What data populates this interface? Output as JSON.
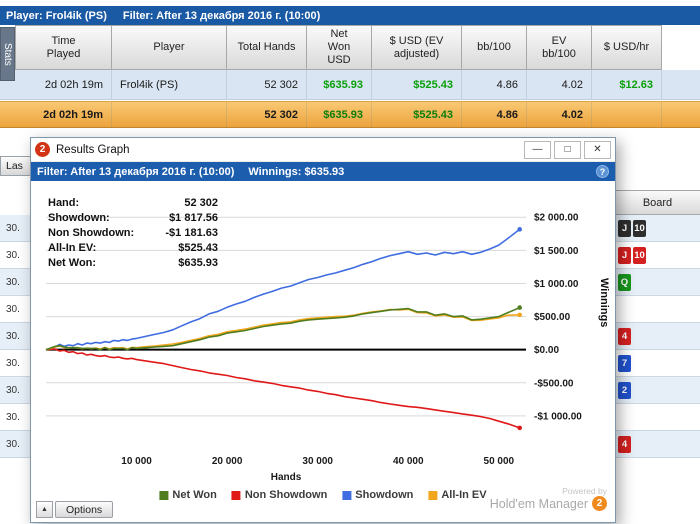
{
  "top_bar": {
    "player": "Player: Frol4ik (PS)",
    "filter": "Filter: After 13 декабря 2016 г. (10:00)"
  },
  "stats_tab": "Stats",
  "table": {
    "columns": [
      "Time Played",
      "Player",
      "Total Hands",
      "Net Won USD",
      "$ USD (EV adjusted)",
      "bb/100",
      "EV bb/100",
      "$ USD/hr"
    ],
    "rows": [
      {
        "time_played": "2d 02h 19m",
        "player": "Frol4ik (PS)",
        "total_hands": "52 302",
        "net_won": "$635.93",
        "usd_ev": "$525.43",
        "bb100": "4.86",
        "ev_bb100": "4.02",
        "usd_hr": "$12.63"
      },
      {
        "time_played": "2d 02h 19m",
        "player": "",
        "total_hands": "52 302",
        "net_won": "$635.93",
        "usd_ev": "$525.43",
        "bb100": "4.86",
        "ev_bb100": "4.02",
        "usd_hr": ""
      }
    ]
  },
  "background": {
    "last_button": "Las",
    "board_header": "Board",
    "left_rows": [
      "30.",
      "30.",
      "30.",
      "30.",
      "30.",
      "30.",
      "30.",
      "30.",
      "30."
    ],
    "card_colors": {
      "black": "#2e2e2e",
      "red": "#d42020",
      "green": "#17961c",
      "blue": "#2051cc"
    },
    "board_rows": [
      {
        "cards": [
          {
            "v": "J",
            "suit": "black"
          },
          {
            "v": "10",
            "suit": "black"
          }
        ]
      },
      {
        "cards": [
          {
            "v": "J",
            "suit": "red"
          },
          {
            "v": "10",
            "suit": "red"
          }
        ]
      },
      {
        "cards": [
          {
            "v": "Q",
            "suit": "green"
          }
        ]
      },
      {
        "cards": []
      },
      {
        "cards": [
          {
            "v": "4",
            "suit": "red"
          }
        ]
      },
      {
        "cards": [
          {
            "v": "7",
            "suit": "blue"
          }
        ]
      },
      {
        "cards": [
          {
            "v": "2",
            "suit": "blue"
          }
        ]
      },
      {
        "cards": []
      },
      {
        "cards": [
          {
            "v": "4",
            "suit": "red"
          }
        ]
      }
    ]
  },
  "graph_window": {
    "title": "Results Graph",
    "icon_label": "2",
    "controls": {
      "minimize": "—",
      "maximize": "□",
      "close": "✕"
    },
    "filter_text": "Filter: After 13 декабря 2016 г. (10:00)",
    "winnings_text": "Winnings: $635.93",
    "help_label": "?",
    "stats": [
      {
        "label": "Hand:",
        "value": "52 302"
      },
      {
        "label": "Showdown:",
        "value": "$1 817.56"
      },
      {
        "label": "Non Showdown:",
        "value": "-$1 181.63"
      },
      {
        "label": "All-In EV:",
        "value": "$525.43"
      },
      {
        "label": "Net Won:",
        "value": "$635.93"
      }
    ],
    "legend": [
      {
        "label": "Net Won",
        "color": "#507d1f"
      },
      {
        "label": "Non Showdown",
        "color": "#e01818"
      },
      {
        "label": "Showdown",
        "color": "#3f6ce0"
      },
      {
        "label": "All-In EV",
        "color": "#f2a61c"
      }
    ],
    "powered_by": "Powered by",
    "brand": "Hold'em Manager",
    "brand_badge": "2",
    "options_label": "Options",
    "options_arrow": "▲"
  },
  "chart_data": {
    "type": "line",
    "title": "Results Graph",
    "xlabel": "Hands",
    "ylabel": "Winnings",
    "grid": "horizontal",
    "legend_position": "bottom",
    "xlim": [
      0,
      53000
    ],
    "ylim": [
      -1500,
      2200
    ],
    "yticks": {
      "values": [
        2000,
        1500,
        1000,
        500,
        0,
        -500,
        -1000
      ],
      "labels": [
        "$2 000.00",
        "$1 500.00",
        "$1 000.00",
        "$500.00",
        "$0.00",
        "-$500.00",
        "-$1 000.00"
      ]
    },
    "xticks": {
      "values": [
        10000,
        20000,
        30000,
        40000,
        50000
      ],
      "labels": [
        "10 000",
        "20 000",
        "30 000",
        "40 000",
        "50 000"
      ]
    },
    "x": [
      0,
      1000,
      1500,
      2000,
      2500,
      3000,
      3500,
      4000,
      4500,
      5000,
      5500,
      6000,
      6500,
      7000,
      7500,
      8000,
      8500,
      9000,
      9500,
      10000,
      11000,
      12000,
      13000,
      14000,
      15000,
      16000,
      17000,
      18000,
      19000,
      20000,
      21000,
      22000,
      23000,
      24000,
      25000,
      26000,
      27000,
      28000,
      29000,
      30000,
      31000,
      32000,
      33000,
      34000,
      35000,
      36000,
      37000,
      38000,
      39000,
      40000,
      41000,
      42000,
      43000,
      44000,
      45000,
      46000,
      47000,
      48000,
      49000,
      50000,
      51000,
      52302
    ],
    "series": [
      {
        "name": "Showdown",
        "color": "#3f6ce0",
        "final": 1817.56,
        "values": [
          0,
          40,
          80,
          50,
          70,
          60,
          90,
          70,
          100,
          90,
          110,
          100,
          120,
          110,
          140,
          130,
          150,
          140,
          160,
          170,
          200,
          230,
          260,
          300,
          360,
          420,
          470,
          540,
          580,
          640,
          690,
          730,
          790,
          840,
          880,
          930,
          960,
          1010,
          1060,
          1090,
          1130,
          1160,
          1200,
          1240,
          1290,
          1330,
          1380,
          1420,
          1450,
          1480,
          1440,
          1460,
          1430,
          1470,
          1450,
          1480,
          1440,
          1470,
          1520,
          1580,
          1680,
          1817.56
        ]
      },
      {
        "name": "Non Showdown",
        "color": "#e01818",
        "final": -1181.63,
        "values": [
          0,
          10,
          -20,
          -10,
          -40,
          -30,
          -60,
          -50,
          -80,
          -70,
          -90,
          -100,
          -90,
          -110,
          -120,
          -110,
          -130,
          -140,
          -130,
          -150,
          -170,
          -190,
          -210,
          -240,
          -270,
          -300,
          -320,
          -350,
          -370,
          -390,
          -420,
          -440,
          -470,
          -490,
          -510,
          -540,
          -560,
          -580,
          -610,
          -630,
          -660,
          -680,
          -710,
          -730,
          -750,
          -770,
          -800,
          -820,
          -840,
          -860,
          -870,
          -890,
          -910,
          -930,
          -950,
          -970,
          -990,
          -1010,
          -1040,
          -1080,
          -1120,
          -1181.63
        ]
      },
      {
        "name": "All-In EV",
        "color": "#f2a61c",
        "final": 525.43,
        "values": [
          0,
          40,
          55,
          35,
          25,
          35,
          25,
          15,
          25,
          15,
          25,
          10,
          35,
          10,
          30,
          25,
          30,
          10,
          35,
          30,
          45,
          55,
          70,
          85,
          110,
          140,
          170,
          210,
          230,
          270,
          290,
          310,
          340,
          370,
          390,
          410,
          420,
          450,
          470,
          480,
          490,
          500,
          505,
          520,
          550,
          570,
          585,
          605,
          600,
          610,
          560,
          555,
          510,
          525,
          490,
          495,
          440,
          445,
          465,
          480,
          520,
          525.43
        ]
      },
      {
        "name": "Net Won",
        "color": "#507d1f",
        "final": 635.93,
        "values": [
          0,
          50,
          60,
          40,
          30,
          30,
          30,
          20,
          20,
          20,
          20,
          0,
          30,
          0,
          20,
          20,
          20,
          0,
          30,
          20,
          30,
          40,
          50,
          60,
          90,
          120,
          150,
          190,
          210,
          250,
          270,
          290,
          320,
          350,
          370,
          390,
          400,
          430,
          450,
          460,
          470,
          480,
          490,
          510,
          540,
          560,
          580,
          600,
          610,
          620,
          570,
          570,
          520,
          540,
          500,
          510,
          450,
          460,
          480,
          500,
          560,
          635.93
        ]
      }
    ]
  }
}
